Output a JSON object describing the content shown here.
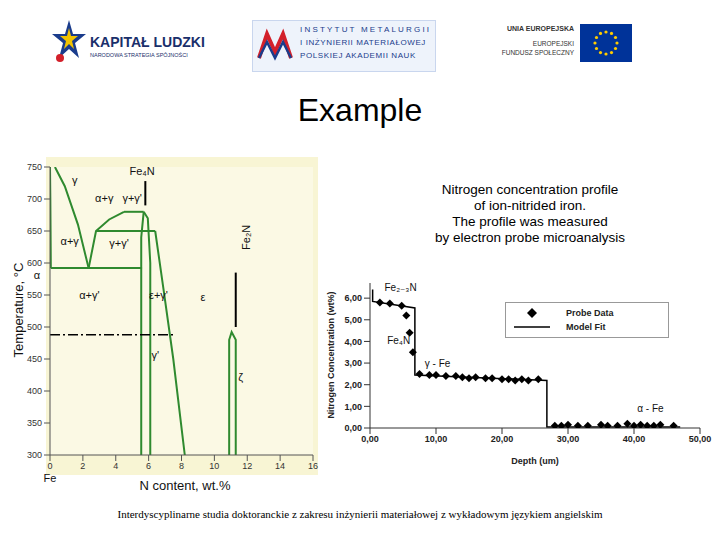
{
  "header": {
    "left_logo": {
      "title": "KAPITAŁ LUDZKI",
      "subtitle": "NARODOWA STRATEGIA SPÓJNOŚCI"
    },
    "center_logo": {
      "lines": [
        "INSTYTUT METALURGII",
        "I INŻYNIERII MATERIAŁOWEJ",
        "POLSKIEJ AKADEMII NAUK"
      ]
    },
    "right_logo": {
      "lines": [
        "UNIA EUROPEJSKA",
        "EUROPEJSKI",
        "FUNDUSZ SPOŁECZNY"
      ]
    }
  },
  "title": "Example",
  "description": [
    "Nitrogen concentration profile",
    "of ion-nitrided iron.",
    "The profile was measured",
    "by electron probe microanalysis"
  ],
  "footer": "Interdyscyplinarne studia doktoranckie z zakresu inżynierii materiałowej z wykładowym językiem angielskim",
  "chart_data": [
    {
      "type": "line",
      "x_label": "N content, wt.%",
      "y_label": "Temperature, °C",
      "xlim": [
        0,
        16
      ],
      "xticks": [
        0,
        2,
        4,
        6,
        8,
        10,
        12,
        14,
        16
      ],
      "ylim": [
        300,
        750
      ],
      "yticks": [
        300,
        350,
        400,
        450,
        500,
        550,
        600,
        650,
        700,
        750
      ],
      "grid": false,
      "series": [
        {
          "color": "#2f8a2f",
          "line_style": "solid",
          "x": [
            0.05,
            0.02,
            0
          ],
          "values": [
            592,
            700,
            750
          ]
        },
        {
          "color": "#2f8a2f",
          "line_style": "solid",
          "x": [
            0.3,
            0.9,
            1.7,
            2.35
          ],
          "values": [
            750,
            720,
            660,
            592
          ]
        },
        {
          "color": "#2f8a2f",
          "line_style": "solid",
          "x": [
            0.05,
            5.6
          ],
          "values": [
            592,
            592
          ]
        },
        {
          "color": "#2f8a2f",
          "line_style": "solid",
          "x": [
            2.35,
            2.8,
            3.6,
            4.5
          ],
          "values": [
            592,
            650,
            668,
            680
          ]
        },
        {
          "color": "#2f8a2f",
          "line_style": "solid",
          "x": [
            2.8,
            6.4
          ],
          "values": [
            650,
            650
          ]
        },
        {
          "color": "#2f8a2f",
          "line_style": "solid",
          "x": [
            4.5,
            5.7
          ],
          "values": [
            680,
            680
          ]
        },
        {
          "color": "#2f8a2f",
          "line_style": "solid",
          "x": [
            5.55,
            5.55,
            5.7
          ],
          "values": [
            300,
            640,
            680
          ]
        },
        {
          "color": "#2f8a2f",
          "line_style": "solid",
          "x": [
            5.7,
            5.95,
            6.1,
            6.1
          ],
          "values": [
            680,
            670,
            600,
            300
          ]
        },
        {
          "color": "#2f8a2f",
          "line_style": "solid",
          "x": [
            6.4,
            6.9,
            7.5,
            8.2
          ],
          "values": [
            650,
            560,
            450,
            300
          ]
        },
        {
          "color": "#2f8a2f",
          "line_style": "solid",
          "x": [
            10.9,
            10.9,
            11.05,
            11.3,
            11.3
          ],
          "values": [
            300,
            480,
            492,
            480,
            300
          ]
        },
        {
          "color": "#000000",
          "line_style": "solid",
          "x": [
            11.3,
            11.3
          ],
          "values": [
            585,
            500
          ]
        },
        {
          "color": "#000000",
          "line_style": "solid",
          "x": [
            5.8,
            5.8
          ],
          "values": [
            728,
            690
          ]
        },
        {
          "color": "#000000",
          "line_style": "dashdot",
          "x": [
            0,
            7.6
          ],
          "values": [
            488,
            488
          ]
        }
      ],
      "annotations": [
        {
          "text": "γ",
          "x": 1.5,
          "y": 728
        },
        {
          "text": "α+γ",
          "x": 3.3,
          "y": 700
        },
        {
          "text": "γ+γ'",
          "x": 5.0,
          "y": 700
        },
        {
          "text": "α+γ",
          "x": 1.2,
          "y": 632
        },
        {
          "text": "γ+γ'",
          "x": 4.2,
          "y": 630
        },
        {
          "text": "α",
          "x": -0.8,
          "y": 580
        },
        {
          "text": "α+γ'",
          "x": 2.4,
          "y": 548
        },
        {
          "text": "ε+γ'",
          "x": 6.6,
          "y": 548
        },
        {
          "text": "ε",
          "x": 9.3,
          "y": 545
        },
        {
          "text": "γ'",
          "x": 6.4,
          "y": 455
        },
        {
          "text": "ζ",
          "x": 11.6,
          "y": 420
        },
        {
          "text": "Fe₄N",
          "x": 5.6,
          "y": 742
        },
        {
          "text": "Fe₂N",
          "x": 12.0,
          "y": 640,
          "orientation": "vertical"
        },
        {
          "text": "Fe",
          "x": 0,
          "y": 262
        }
      ]
    },
    {
      "type": "scatter",
      "x_label": "Depth (um)",
      "y_label": "Nitrogen Concentration (wt%)",
      "xlim": [
        0,
        50
      ],
      "xticks": [
        {
          "value": 0,
          "label": "0,00"
        },
        {
          "value": 10,
          "label": "10,00"
        },
        {
          "value": 20,
          "label": "20,00"
        },
        {
          "value": 30,
          "label": "30,00"
        },
        {
          "value": 40,
          "label": "40,00"
        },
        {
          "value": 50,
          "label": "50,00"
        }
      ],
      "ylim": [
        0,
        6.7
      ],
      "yticks": [
        {
          "value": 0,
          "label": "0,00"
        },
        {
          "value": 1,
          "label": "1,00"
        },
        {
          "value": 2,
          "label": "2,00"
        },
        {
          "value": 3,
          "label": "3,00"
        },
        {
          "value": 4,
          "label": "4,00"
        },
        {
          "value": 5,
          "label": "5,00"
        },
        {
          "value": 6,
          "label": "6,00"
        }
      ],
      "grid": false,
      "legend": "upper right",
      "series": [
        {
          "name": "Probe Data",
          "type": "scatter",
          "marker": "diamond",
          "color": "#000000",
          "x": [
            1.5,
            3,
            4.8,
            5.5,
            6,
            6.5,
            7.5,
            9,
            10,
            11.5,
            13,
            14,
            15,
            16,
            17.5,
            18.5,
            20,
            21,
            22,
            23,
            24,
            25.5,
            28,
            29,
            30,
            31.5,
            33,
            35,
            36,
            37.5,
            39,
            40,
            41,
            42,
            43,
            44,
            46
          ],
          "values": [
            5.8,
            5.75,
            5.65,
            5.2,
            4.4,
            3.5,
            2.5,
            2.45,
            2.45,
            2.4,
            2.4,
            2.35,
            2.3,
            2.35,
            2.3,
            2.3,
            2.25,
            2.25,
            2.2,
            2.25,
            2.2,
            2.25,
            0.1,
            0.1,
            0.15,
            0.1,
            0.1,
            0.15,
            0.1,
            0.1,
            0.2,
            0.1,
            0.15,
            0.1,
            0.1,
            0.15,
            0.1
          ]
        },
        {
          "name": "Model Fit",
          "type": "line",
          "line_style": "solid",
          "color": "#000000",
          "x": [
            0.4,
            0.4,
            6.8,
            6.8,
            26.8,
            26.8,
            47
          ],
          "values": [
            6.4,
            5.85,
            5.55,
            2.45,
            2.2,
            0.05,
            0.05
          ]
        }
      ],
      "annotations": [
        {
          "text": "Fe₂₋₃N",
          "x": 2.2,
          "y": 6.45
        },
        {
          "text": "Fe₄N",
          "x": 2.6,
          "y": 4.0
        },
        {
          "text": "γ - Fe",
          "x": 8.3,
          "y": 2.95
        },
        {
          "text": "α - Fe",
          "x": 40.5,
          "y": 0.85
        }
      ]
    }
  ]
}
